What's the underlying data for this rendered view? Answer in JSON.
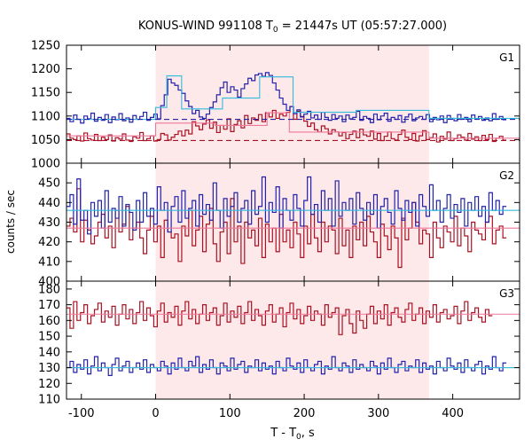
{
  "chart_data": {
    "type": "line",
    "title_main": "KONUS-WIND 991108 T",
    "title_sub": "0",
    "title_rest": " = 21447s UT (05:57:27.000)",
    "ylabel": "counts / sec",
    "xlabel_main": "T - T",
    "xlabel_sub": "0",
    "xlabel_rest": ", s",
    "xlim": [
      -120,
      490
    ],
    "xticks": [
      -100,
      0,
      100,
      200,
      300,
      400
    ],
    "shaded_interval": [
      0,
      368
    ],
    "colors": {
      "red": "#aa1122",
      "blue": "#2222aa",
      "cyan": "#33bbdd",
      "pink": "#ee7799",
      "shade": "#fde8ea"
    },
    "panels": [
      {
        "label": "G1",
        "ylim": [
          1000,
          1250
        ],
        "yticks": [
          1000,
          1050,
          1100,
          1150,
          1200,
          1250
        ],
        "step": 4.7,
        "series": [
          {
            "name": "",
            "color": "red",
            "values": [
              1062,
              1053,
              1050,
              1058,
              1047,
              1064,
              1052,
              1049,
              1061,
              1048,
              1055,
              1050,
              1060,
              1047,
              1054,
              1051,
              1062,
              1049,
              1046,
              1056,
              1053,
              1065,
              1048,
              1052,
              1058,
              1047,
              1050,
              1063,
              1060,
              1049,
              1055,
              1061,
              1068,
              1058,
              1070,
              1062,
              1088,
              1079,
              1071,
              1083,
              1092,
              1074,
              1087,
              1065,
              1080,
              1072,
              1094,
              1067,
              1082,
              1090,
              1075,
              1101,
              1084,
              1096,
              1091,
              1103,
              1088,
              1107,
              1098,
              1112,
              1095,
              1104,
              1100,
              1108,
              1120,
              1093,
              1110,
              1099,
              1089,
              1078,
              1085,
              1071,
              1066,
              1079,
              1073,
              1062,
              1071,
              1066,
              1058,
              1065,
              1052,
              1061,
              1068,
              1054,
              1072,
              1060,
              1057,
              1068,
              1051,
              1063,
              1048,
              1057,
              1066,
              1052,
              1049,
              1061,
              1070,
              1055,
              1050,
              1063,
              1047,
              1058,
              1069,
              1050,
              1054,
              1062,
              1045,
              1057,
              1051,
              1066,
              1048,
              1052,
              1060,
              1055,
              1049,
              1063,
              1051,
              1056,
              1048,
              1059,
              1050,
              1061,
              1046,
              1053,
              1057,
              1049
            ]
          },
          {
            "name": "",
            "color": "blue",
            "values": [
              1095,
              1088,
              1102,
              1093,
              1085,
              1100,
              1094,
              1106,
              1089,
              1097,
              1091,
              1103,
              1086,
              1098,
              1092,
              1105,
              1090,
              1096,
              1087,
              1101,
              1093,
              1099,
              1108,
              1091,
              1097,
              1104,
              1094,
              1122,
              1145,
              1178,
              1170,
              1165,
              1155,
              1148,
              1132,
              1120,
              1105,
              1112,
              1098,
              1095,
              1104,
              1118,
              1130,
              1145,
              1160,
              1172,
              1150,
              1162,
              1155,
              1140,
              1158,
              1168,
              1180,
              1175,
              1187,
              1190,
              1184,
              1192,
              1186,
              1170,
              1155,
              1138,
              1125,
              1112,
              1120,
              1105,
              1113,
              1098,
              1104,
              1110,
              1096,
              1102,
              1093,
              1108,
              1097,
              1091,
              1103,
              1095,
              1100,
              1088,
              1102,
              1094,
              1097,
              1110,
              1091,
              1099,
              1095,
              1086,
              1104,
              1092,
              1100,
              1106,
              1089,
              1097,
              1093,
              1101,
              1087,
              1098,
              1104,
              1090,
              1096,
              1099,
              1093,
              1103,
              1088,
              1097,
              1092,
              1100,
              1086,
              1101,
              1095,
              1090,
              1103,
              1093,
              1097,
              1088,
              1102,
              1094,
              1099,
              1091,
              1096,
              1090,
              1105,
              1093,
              1099,
              1092
            ]
          },
          {
            "name": "",
            "color": "pink",
            "kind": "blocks",
            "blocks": [
              [
                -120,
                0,
                1058
              ],
              [
                0,
                80,
                1085
              ],
              [
                80,
                150,
                1080
              ],
              [
                150,
                180,
                1107
              ],
              [
                180,
                368,
                1066
              ],
              [
                368,
                490,
                1053
              ]
            ]
          },
          {
            "name": "",
            "color": "cyan",
            "kind": "blocks",
            "blocks": [
              [
                -120,
                0,
                1093
              ],
              [
                0,
                15,
                1118
              ],
              [
                15,
                35,
                1185
              ],
              [
                35,
                90,
                1115
              ],
              [
                90,
                140,
                1138
              ],
              [
                140,
                185,
                1183
              ],
              [
                185,
                270,
                1108
              ],
              [
                270,
                368,
                1112
              ],
              [
                368,
                490,
                1095
              ]
            ]
          },
          {
            "name": "",
            "color": "red",
            "kind": "hline",
            "dashed": true,
            "value": 1048
          },
          {
            "name": "",
            "color": "blue",
            "kind": "hline",
            "dashed": true,
            "value": 1093
          }
        ]
      },
      {
        "label": "G2",
        "ylim": [
          400,
          460
        ],
        "yticks": [
          400,
          410,
          420,
          430,
          440,
          450
        ],
        "step": 4.7,
        "series": [
          {
            "name": "",
            "color": "red",
            "values": [
              428,
              432,
              425,
              447,
              420,
              431,
              426,
              419,
              423,
              430,
              434,
              422,
              428,
              417,
              436,
              425,
              429,
              438,
              421,
              427,
              430,
              422,
              414,
              426,
              433,
              420,
              428,
              412,
              431,
              425,
              422,
              424,
              410,
              428,
              423,
              436,
              418,
              426,
              433,
              415,
              429,
              437,
              419,
              410,
              425,
              430,
              414,
              442,
              420,
              428,
              409,
              430,
              422,
              426,
              418,
              432,
              412,
              429,
              420,
              427,
              415,
              434,
              420,
              426,
              417,
              430,
              424,
              412,
              428,
              419,
              434,
              422,
              415,
              430,
              420,
              428,
              426,
              414,
              432,
              418,
              426,
              412,
              428,
              421,
              430,
              418,
              433,
              425,
              420,
              412,
              429,
              423,
              416,
              428,
              422,
              407,
              432,
              421,
              427,
              440,
              430,
              419,
              426,
              424,
              412,
              430,
              422,
              417,
              428,
              425,
              420,
              433,
              418,
              427,
              423,
              415,
              430,
              426,
              424,
              421,
              430,
              433,
              419,
              426,
              428,
              422
            ]
          },
          {
            "name": "",
            "color": "blue",
            "values": [
              438,
              444,
              429,
              452,
              431,
              436,
              424,
              440,
              433,
              441,
              427,
              446,
              430,
              437,
              432,
              443,
              428,
              439,
              435,
              426,
              441,
              430,
              445,
              433,
              437,
              429,
              448,
              436,
              440,
              425,
              438,
              443,
              430,
              446,
              432,
              437,
              441,
              428,
              444,
              434,
              439,
              431,
              450,
              436,
              427,
              442,
              433,
              438,
              445,
              430,
              437,
              441,
              429,
              446,
              434,
              438,
              453,
              430,
              440,
              435,
              448,
              427,
              442,
              436,
              431,
              444,
              437,
              428,
              441,
              453,
              434,
              439,
              430,
              446,
              436,
              442,
              428,
              451,
              433,
              440,
              436,
              442,
              429,
              445,
              437,
              431,
              440,
              434,
              444,
              427,
              438,
              442,
              435,
              429,
              446,
              437,
              431,
              441,
              435,
              440,
              428,
              444,
              438,
              433,
              449,
              436,
              441,
              430,
              437,
              444,
              432,
              439,
              435,
              442,
              428,
              440,
              436,
              443,
              433,
              438,
              430,
              445,
              436,
              441,
              434,
              438
            ]
          },
          {
            "name": "",
            "color": "cyan",
            "kind": "hline",
            "value": 436
          },
          {
            "name": "",
            "color": "pink",
            "kind": "hline",
            "value": 427
          }
        ]
      },
      {
        "label": "G3",
        "ylim": [
          110,
          185
        ],
        "yticks": [
          110,
          120,
          130,
          140,
          150,
          160,
          170,
          180
        ],
        "step": 4.7,
        "series": [
          {
            "name": "",
            "color": "red",
            "values": [
              168,
              155,
              172,
              160,
              165,
              170,
              158,
              163,
              167,
              171,
              159,
              166,
              162,
              169,
              157,
              164,
              170,
              161,
              167,
              158,
              165,
              172,
              160,
              168,
              163,
              156,
              166,
              171,
              159,
              165,
              162,
              169,
              157,
              166,
              172,
              161,
              167,
              158,
              164,
              170,
              160,
              165,
              168,
              157,
              163,
              171,
              159,
              166,
              162,
              169,
              158,
              165,
              172,
              160,
              167,
              163,
              157,
              166,
              170,
              159,
              164,
              168,
              156,
              165,
              171,
              161,
              167,
              158,
              163,
              169,
              160,
              166,
              164,
              157,
              170,
              162,
              165,
              168,
              151,
              163,
              167,
              158,
              152,
              166,
              160,
              155,
              164,
              169,
              158,
              166,
              161,
              170,
              157,
              165,
              168,
              162,
              159,
              167,
              171,
              160,
              164,
              168,
              158,
              166,
              162,
              170,
              159,
              165,
              167,
              161,
              163,
              169,
              158,
              166,
              172,
              160,
              165,
              168,
              162,
              159,
              167,
              163
            ]
          },
          {
            "name": "",
            "color": "blue",
            "values": [
              130,
              134,
              127,
              132,
              129,
              135,
              126,
              131,
              137,
              128,
              133,
              130,
              125,
              132,
              136,
              128,
              131,
              134,
              127,
              130,
              133,
              129,
              135,
              127,
              132,
              130,
              128,
              134,
              131,
              126,
              133,
              129,
              136,
              130,
              128,
              134,
              131,
              137,
              127,
              132,
              129,
              135,
              130,
              126,
              133,
              131,
              128,
              136,
              129,
              132,
              134,
              127,
              131,
              130,
              135,
              128,
              133,
              129,
              131,
              126,
              134,
              130,
              128,
              136,
              131,
              129,
              133,
              127,
              135,
              130,
              128,
              132,
              134,
              126,
              131,
              129,
              137,
              130,
              128,
              133,
              131,
              127,
              135,
              129,
              132,
              130,
              128,
              134,
              131,
              126,
              133,
              129,
              136,
              130,
              127,
              132,
              134,
              128,
              131,
              130,
              135,
              127,
              133,
              129,
              131,
              126,
              134,
              130,
              128,
              136,
              131,
              129,
              133,
              127,
              135,
              130,
              128,
              132,
              134,
              126,
              131,
              129,
              137,
              130,
              128,
              133
            ]
          },
          {
            "name": "",
            "color": "pink",
            "kind": "hline",
            "value": 164
          },
          {
            "name": "",
            "color": "cyan",
            "kind": "hline",
            "value": 130
          }
        ]
      }
    ]
  }
}
